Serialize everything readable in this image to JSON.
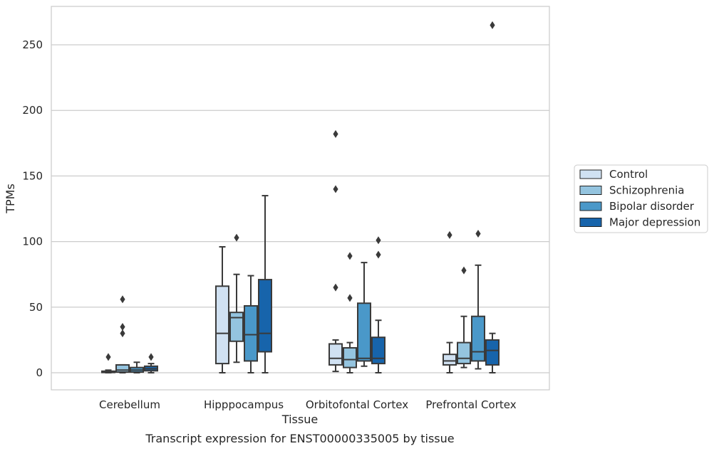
{
  "caption": "Transcript expression for ENST00000335005 by tissue",
  "chart_data": {
    "type": "box",
    "xlabel": "Tissue",
    "ylabel": "TPMs",
    "ylim": [
      -12,
      280
    ],
    "yticks": [
      0,
      50,
      100,
      150,
      200,
      250
    ],
    "grid": "horizontal",
    "legend_position": "right",
    "categories": [
      "Cerebellum",
      "Hipppocampus",
      "Orbitofontal Cortex",
      "Prefrontal Cortex"
    ],
    "series": [
      {
        "name": "Control",
        "color": "#d0e1f2",
        "boxes": [
          {
            "whisker_low": 0,
            "q1": 0.2,
            "median": 0.6,
            "q3": 1.2,
            "whisker_high": 2,
            "outliers": [
              12
            ]
          },
          {
            "whisker_low": 0,
            "q1": 7,
            "median": 30,
            "q3": 66,
            "whisker_high": 96,
            "outliers": []
          },
          {
            "whisker_low": 1,
            "q1": 6,
            "median": 11,
            "q3": 22,
            "whisker_high": 25,
            "outliers": [
              65,
              140,
              182
            ]
          },
          {
            "whisker_low": 0,
            "q1": 6,
            "median": 9,
            "q3": 14,
            "whisker_high": 23,
            "outliers": [
              105
            ]
          }
        ]
      },
      {
        "name": "Schizophrenia",
        "color": "#94c4df",
        "boxes": [
          {
            "whisker_low": 0,
            "q1": 0.5,
            "median": 2,
            "q3": 6,
            "whisker_high": 6,
            "outliers": [
              30,
              35,
              56
            ]
          },
          {
            "whisker_low": 8,
            "q1": 24,
            "median": 42,
            "q3": 46,
            "whisker_high": 75,
            "outliers": [
              103
            ]
          },
          {
            "whisker_low": 0,
            "q1": 4,
            "median": 10,
            "q3": 19,
            "whisker_high": 23,
            "outliers": [
              57,
              89
            ]
          },
          {
            "whisker_low": 4,
            "q1": 7,
            "median": 11,
            "q3": 23,
            "whisker_high": 43,
            "outliers": [
              78
            ]
          }
        ]
      },
      {
        "name": "Bipolar disorder",
        "color": "#4a98c9",
        "boxes": [
          {
            "whisker_low": 0,
            "q1": 0.5,
            "median": 2,
            "q3": 4,
            "whisker_high": 8,
            "outliers": []
          },
          {
            "whisker_low": 0,
            "q1": 9,
            "median": 29,
            "q3": 51,
            "whisker_high": 74,
            "outliers": []
          },
          {
            "whisker_low": 5,
            "q1": 9,
            "median": 11,
            "q3": 53,
            "whisker_high": 84,
            "outliers": []
          },
          {
            "whisker_low": 3,
            "q1": 9,
            "median": 16,
            "q3": 43,
            "whisker_high": 82,
            "outliers": [
              106
            ]
          }
        ]
      },
      {
        "name": "Major depression",
        "color": "#1764ab",
        "boxes": [
          {
            "whisker_low": 0,
            "q1": 1.5,
            "median": 3,
            "q3": 5,
            "whisker_high": 7,
            "outliers": [
              12
            ]
          },
          {
            "whisker_low": 0,
            "q1": 16,
            "median": 30,
            "q3": 71,
            "whisker_high": 135,
            "outliers": []
          },
          {
            "whisker_low": 0,
            "q1": 7,
            "median": 11,
            "q3": 27,
            "whisker_high": 40,
            "outliers": [
              90,
              101
            ]
          },
          {
            "whisker_low": 0,
            "q1": 6,
            "median": 17,
            "q3": 25,
            "whisker_high": 30,
            "outliers": [
              265
            ]
          }
        ]
      }
    ]
  }
}
